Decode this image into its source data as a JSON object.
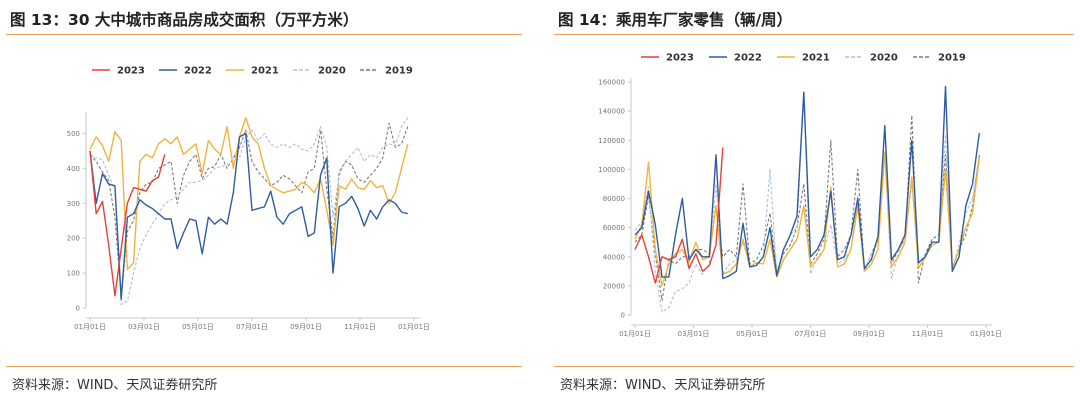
{
  "left": {
    "title": "图 13：30 大中城市商品房成交面积（万平方米）",
    "source": "资料来源：WIND、天风证券研究所"
  },
  "right": {
    "title": "图 14：乘用车厂家零售（辆/周）",
    "source": "资料来源：WIND、天风证券研究所"
  },
  "chart_data": [
    {
      "type": "line",
      "title": "图 13：30 大中城市商品房成交面积（万平方米）",
      "x_tick_labels": [
        "01月01日",
        "03月01日",
        "05月01日",
        "07月01日",
        "09月01日",
        "11月01日",
        "01月01日"
      ],
      "x_range_weeks": [
        0,
        52
      ],
      "ylim": [
        0,
        550
      ],
      "y_ticks": [
        0,
        100,
        200,
        300,
        400,
        500
      ],
      "grid": false,
      "legend_position": "top-center",
      "series": [
        {
          "name": "2023",
          "color": "#e83f3a",
          "style": "solid",
          "values": [
            450,
            270,
            305,
            180,
            35,
            170,
            300,
            345,
            340,
            335,
            365,
            375,
            440
          ]
        },
        {
          "name": "2022",
          "color": "#2e5c9e",
          "style": "solid",
          "values": [
            450,
            300,
            385,
            355,
            350,
            25,
            260,
            270,
            310,
            295,
            285,
            270,
            255,
            255,
            170,
            215,
            255,
            250,
            155,
            260,
            240,
            255,
            240,
            330,
            490,
            500,
            280,
            285,
            290,
            335,
            260,
            240,
            270,
            280,
            290,
            205,
            215,
            380,
            430,
            100,
            290,
            300,
            320,
            285,
            235,
            280,
            255,
            290,
            310,
            300,
            275,
            270
          ]
        },
        {
          "name": "2021",
          "color": "#f2b33d",
          "style": "solid",
          "values": [
            455,
            490,
            465,
            420,
            505,
            480,
            110,
            130,
            420,
            440,
            430,
            470,
            485,
            470,
            490,
            440,
            455,
            470,
            385,
            480,
            455,
            440,
            520,
            400,
            490,
            545,
            490,
            470,
            400,
            350,
            340,
            330,
            335,
            340,
            360,
            350,
            330,
            370,
            280,
            180,
            350,
            340,
            370,
            345,
            340,
            365,
            345,
            350,
            300,
            330,
            400,
            470
          ]
        },
        {
          "name": "2020",
          "color": "#a9c0df",
          "style": "dashed",
          "values": [
            440,
            430,
            425,
            380,
            340,
            10,
            20,
            100,
            170,
            210,
            240,
            270,
            300,
            310,
            320,
            340,
            360,
            360,
            365,
            380,
            400,
            405,
            410,
            415,
            430,
            490,
            510,
            480,
            500,
            470,
            460,
            470,
            460,
            470,
            455,
            450,
            470,
            520,
            460,
            260,
            380,
            420,
            440,
            460,
            420,
            440,
            430,
            460,
            470,
            465,
            520,
            545
          ]
        },
        {
          "name": "2019",
          "color": "#7a7a7a",
          "style": "dashed",
          "values": [
            440,
            420,
            390,
            365,
            260,
            30,
            220,
            250,
            330,
            355,
            360,
            400,
            410,
            420,
            300,
            380,
            420,
            440,
            370,
            400,
            405,
            440,
            400,
            430,
            460,
            510,
            420,
            390,
            370,
            350,
            360,
            380,
            370,
            350,
            330,
            390,
            400,
            510,
            340,
            200,
            390,
            420,
            410,
            370,
            360,
            380,
            400,
            430,
            530,
            460,
            470,
            520
          ]
        }
      ]
    },
    {
      "type": "line",
      "title": "图 14：乘用车厂家零售（辆/周）",
      "x_tick_labels": [
        "01月01日",
        "03月01日",
        "05月01日",
        "07月01日",
        "09月01日",
        "11月01日",
        "01月01日"
      ],
      "x_range_weeks": [
        0,
        52
      ],
      "ylim": [
        0,
        160000
      ],
      "y_ticks": [
        0,
        20000,
        40000,
        60000,
        80000,
        100000,
        120000,
        140000,
        160000
      ],
      "grid": false,
      "legend_position": "top-center",
      "series": [
        {
          "name": "2023",
          "color": "#e83f3a",
          "style": "solid",
          "values": [
            45000,
            55000,
            40000,
            22000,
            40000,
            38000,
            40000,
            52000,
            32000,
            42000,
            30000,
            34000,
            48000,
            115000
          ]
        },
        {
          "name": "2022",
          "color": "#2e5c9e",
          "style": "solid",
          "values": [
            55000,
            60000,
            85000,
            62000,
            26000,
            26000,
            55000,
            80000,
            38000,
            45000,
            40000,
            40000,
            110000,
            25000,
            27000,
            30000,
            63000,
            33000,
            34000,
            40000,
            60000,
            27000,
            45000,
            55000,
            68000,
            153000,
            40000,
            45000,
            55000,
            85000,
            38000,
            40000,
            55000,
            80000,
            32000,
            38000,
            54000,
            130000,
            38000,
            45000,
            55000,
            120000,
            36000,
            40000,
            50000,
            50000,
            157000,
            30000,
            40000,
            75000,
            90000,
            125000
          ]
        },
        {
          "name": "2021",
          "color": "#f2b33d",
          "style": "solid",
          "values": [
            52000,
            62000,
            105000,
            45000,
            20000,
            35000,
            42000,
            45000,
            36000,
            50000,
            38000,
            40000,
            75000,
            28000,
            30000,
            35000,
            52000,
            33000,
            36000,
            35000,
            52000,
            26000,
            38000,
            45000,
            52000,
            75000,
            33000,
            38000,
            45000,
            88000,
            33000,
            35000,
            45000,
            75000,
            30000,
            35000,
            45000,
            112000,
            33000,
            40000,
            50000,
            95000,
            32000,
            40000,
            48000,
            50000,
            100000,
            32000,
            45000,
            60000,
            70000,
            108000
          ]
        },
        {
          "name": "2020",
          "color": "#a9c0df",
          "style": "dashed",
          "values": [
            58000,
            64000,
            88000,
            30000,
            2000,
            5000,
            16000,
            18000,
            22000,
            35000,
            28000,
            35000,
            90000,
            28000,
            35000,
            38000,
            50000,
            34000,
            35000,
            40000,
            100000,
            28000,
            45000,
            55000,
            60000,
            152000,
            28000,
            40000,
            45000,
            62000,
            35000,
            38000,
            45000,
            82000,
            30000,
            42000,
            50000,
            110000,
            25000,
            42000,
            55000,
            90000,
            35000,
            42000,
            48000,
            50000,
            124000,
            32000,
            48000,
            70000,
            80000,
            110000
          ]
        },
        {
          "name": "2019",
          "color": "#7a7a7a",
          "style": "dashed",
          "values": [
            50000,
            55000,
            82000,
            42000,
            10000,
            38000,
            35000,
            40000,
            40000,
            45000,
            45000,
            42000,
            74000,
            40000,
            45000,
            40000,
            90000,
            35000,
            38000,
            48000,
            70000,
            30000,
            42000,
            48000,
            60000,
            90000,
            35000,
            42000,
            52000,
            120000,
            40000,
            45000,
            55000,
            100000,
            30000,
            42000,
            52000,
            110000,
            35000,
            45000,
            52000,
            137000,
            22000,
            42000,
            52000,
            55000,
            110000,
            32000,
            45000,
            55000,
            75000,
            110000
          ]
        }
      ]
    }
  ]
}
